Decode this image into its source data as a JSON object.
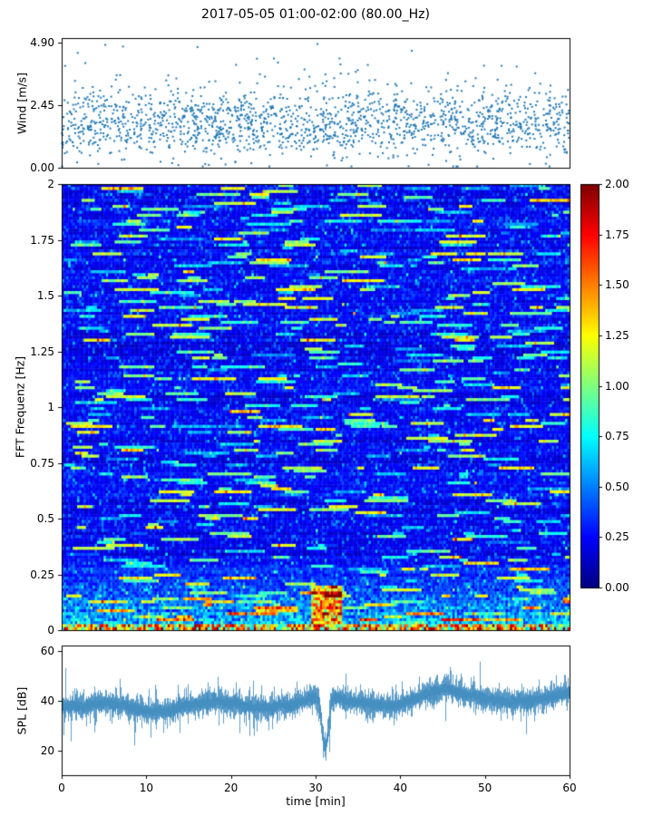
{
  "title": "2017-05-05 01:00-02:00 (80.00_Hz)",
  "colors": {
    "series": "#1f77b4",
    "frame": "#000000",
    "background": "#ffffff"
  },
  "chart_data": [
    {
      "type": "scatter",
      "name": "wind-speed",
      "ylabel": "Wind [m/s]",
      "ylim": [
        0,
        4.9
      ],
      "yticks": [
        "4.90",
        "2.45",
        "0.00"
      ],
      "ytick_values": [
        4.9,
        2.45,
        0
      ],
      "xlim": [
        0,
        60
      ],
      "n_points": 1700,
      "mean": 1.75,
      "std": 0.65,
      "marker": "point"
    },
    {
      "type": "heatmap",
      "name": "fft-spectrogram",
      "ylabel": "FFT Frequenz [Hz]",
      "ylim": [
        0,
        2
      ],
      "yticks": [
        "2",
        "1.75",
        "1.5",
        "1.25",
        "1",
        "0.75",
        "0.5",
        "0.25",
        "0"
      ],
      "ytick_values": [
        2,
        1.75,
        1.5,
        1.25,
        1,
        0.75,
        0.5,
        0.25,
        0
      ],
      "xlim": [
        0,
        60
      ],
      "colormap": "jet",
      "vmin": 0,
      "vmax": 2,
      "background_level": 0.25,
      "low_freq_band_max_hz": 0.3,
      "hotspot": {
        "time_min": 31,
        "freq_max_hz": 0.2,
        "level": 1.8
      },
      "colorbar_ticks": [
        "2.00",
        "1.75",
        "1.50",
        "1.25",
        "1.00",
        "0.75",
        "0.50",
        "0.25",
        "0.00"
      ],
      "colorbar_tick_values": [
        2,
        1.75,
        1.5,
        1.25,
        1,
        0.75,
        0.5,
        0.25,
        0
      ]
    },
    {
      "type": "line",
      "name": "spl",
      "ylabel": "SPL [dB]",
      "xlabel": "time [min]",
      "ylim": [
        10,
        62
      ],
      "yticks": [
        "60",
        "40",
        "20"
      ],
      "ytick_values": [
        60,
        40,
        20
      ],
      "xticks": [
        "0",
        "10",
        "20",
        "30",
        "40",
        "50",
        "60"
      ],
      "xtick_values": [
        0,
        10,
        20,
        30,
        40,
        50,
        60
      ],
      "baseline_db": 38,
      "noise_band_db": 5,
      "dip": {
        "time_min": 31,
        "min_db": 14
      }
    }
  ]
}
